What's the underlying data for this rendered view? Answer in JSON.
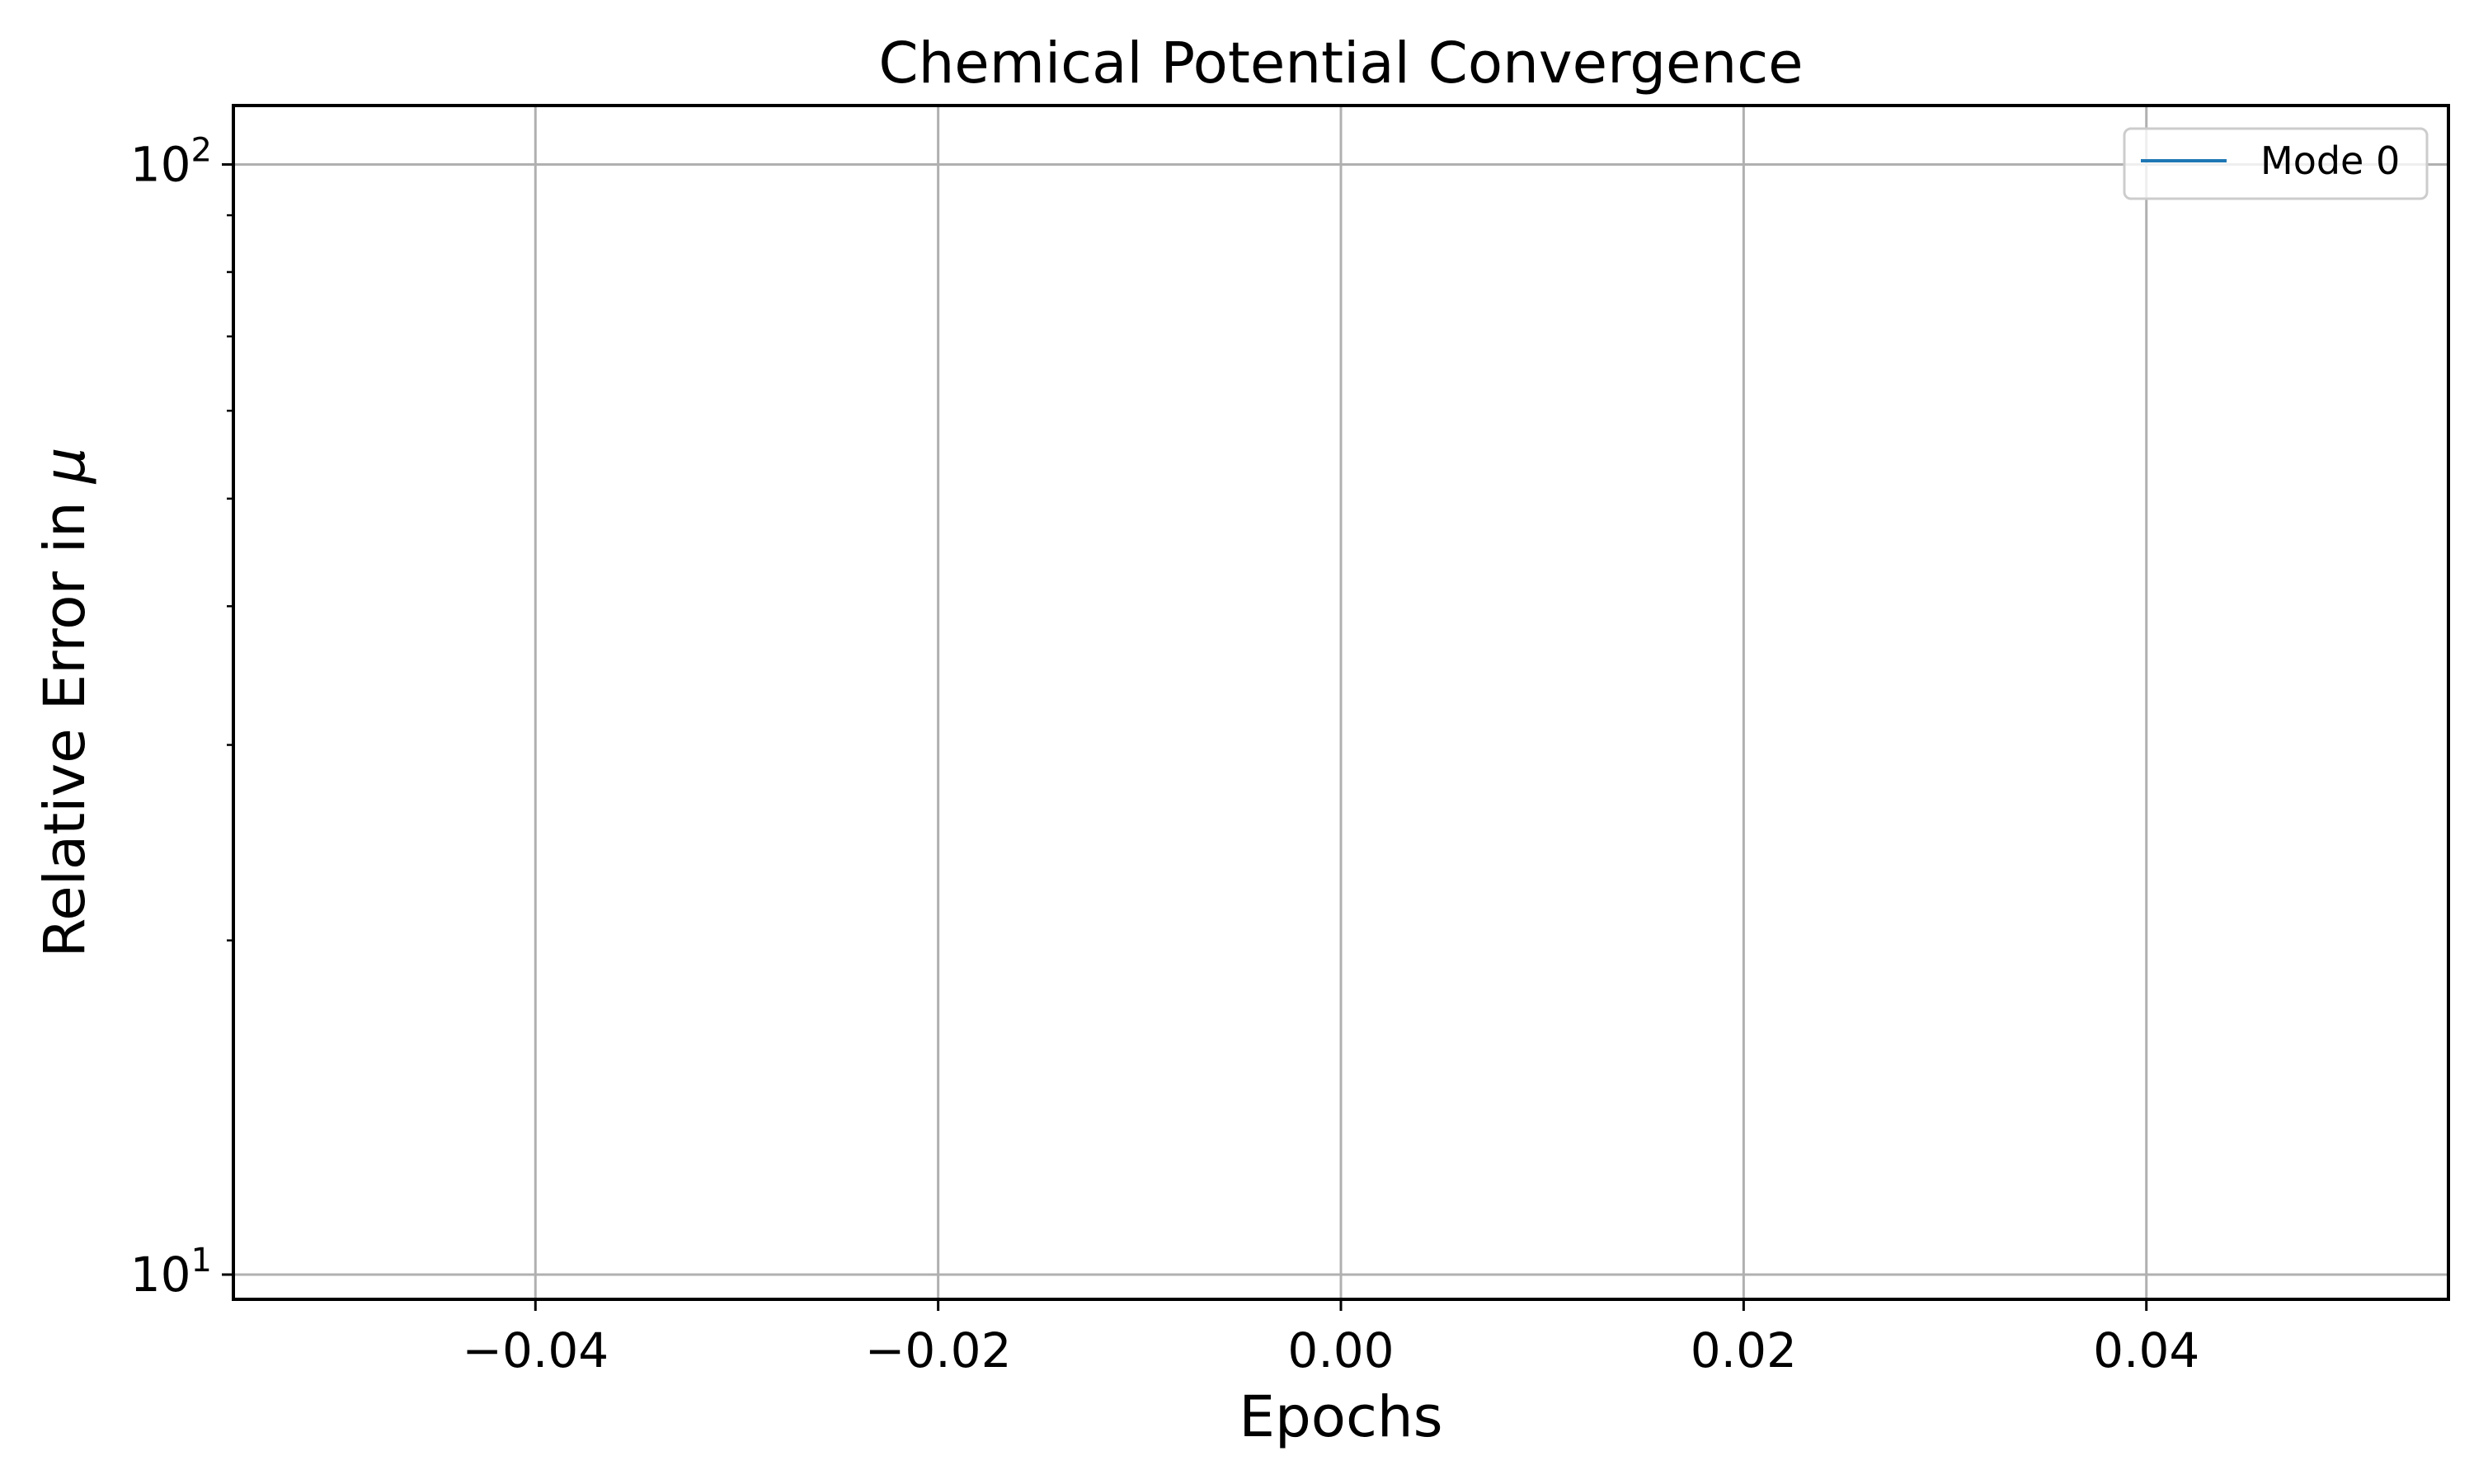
{
  "chart_data": {
    "type": "line",
    "title": "Chemical Potential Convergence",
    "xlabel": "Epochs",
    "ylabel": "Relative Error in μ",
    "ylabel_symbol": "μ",
    "ylabel_prefix": "Relative Error in ",
    "x_scale": "linear",
    "y_scale": "log",
    "xlim": [
      -0.055,
      0.055
    ],
    "ylim": [
      9.5,
      113
    ],
    "x_ticks": [
      -0.04,
      -0.02,
      0.0,
      0.02,
      0.04
    ],
    "x_tick_labels": [
      "−0.04",
      "−0.02",
      "0.00",
      "0.02",
      "0.04"
    ],
    "y_major_ticks": [
      10,
      100
    ],
    "y_tick_labels": [
      {
        "base": "10",
        "exp": "1"
      },
      {
        "base": "10",
        "exp": "2"
      }
    ],
    "y_minor_ticks": [
      20,
      30,
      40,
      50,
      60,
      70,
      80,
      90
    ],
    "grid": true,
    "legend_position": "top-right",
    "series": [
      {
        "name": "Mode 0",
        "color": "#1f77b4",
        "x": [],
        "y": []
      }
    ]
  }
}
